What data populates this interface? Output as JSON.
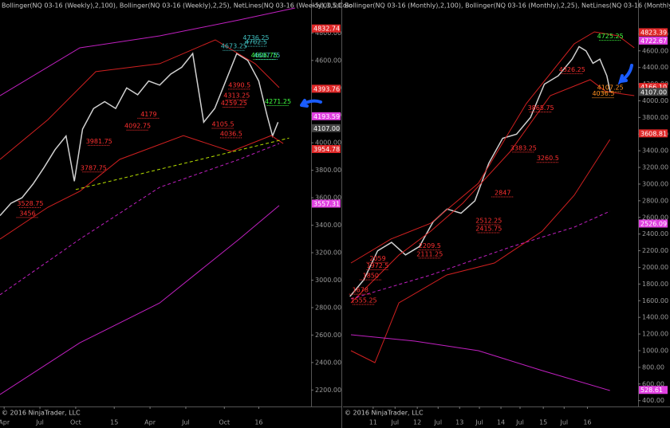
{
  "chart_data": [
    {
      "type": "line",
      "header": "Bollinger(NQ 03-16 (Weekly),2,100), Bollinger(NQ 03-16 (Weekly),2,25), NetLines(NQ 03-16 (Weekly),3,5,Colo",
      "copyright": "© 2016 NinjaTrader, LLC",
      "xlim": [
        0,
        113
      ],
      "xticks": [
        {
          "value": 1.5,
          "label": "Apr"
        },
        {
          "value": 14.5,
          "label": "Jul"
        },
        {
          "value": 27.5,
          "label": "Oct"
        },
        {
          "value": 41.5,
          "label": "15"
        },
        {
          "value": 54.5,
          "label": "Apr"
        },
        {
          "value": 67.5,
          "label": "Jul"
        },
        {
          "value": 81.5,
          "label": "Oct"
        },
        {
          "value": 94,
          "label": "16"
        }
      ],
      "ylim": [
        2080,
        5040
      ],
      "yticks": [
        {
          "value": 2200,
          "label": "2200.00"
        },
        {
          "value": 2400,
          "label": "2400.00"
        },
        {
          "value": 2600,
          "label": "2600.00"
        },
        {
          "value": 2800,
          "label": "2800.00"
        },
        {
          "value": 3000,
          "label": "3000.00"
        },
        {
          "value": 3200,
          "label": "3200.00"
        },
        {
          "value": 3400,
          "label": "3400.00"
        },
        {
          "value": 3600,
          "label": "3600.00"
        },
        {
          "value": 3800,
          "label": "3800.00"
        },
        {
          "value": 4000,
          "label": "4000.00"
        },
        {
          "value": 4200,
          "label": "4200.00"
        },
        {
          "value": 4400,
          "label": "4400.00"
        },
        {
          "value": 4600,
          "label": "4600.00"
        },
        {
          "value": 4800,
          "label": "4800.00"
        },
        {
          "value": 5000,
          "label": "5000.00"
        }
      ],
      "series": [
        {
          "color": "#d0d0d0",
          "x": [
            0,
            4,
            8,
            12,
            16,
            20,
            24,
            27,
            30,
            34,
            38,
            42,
            46,
            50,
            54,
            58,
            62,
            66,
            70,
            74,
            78,
            82,
            86,
            90,
            94,
            97,
            99,
            101
          ],
          "values": [
            3470,
            3560,
            3600,
            3700,
            3820,
            3950,
            4050,
            3720,
            4100,
            4250,
            4300,
            4250,
            4400,
            4350,
            4450,
            4420,
            4500,
            4550,
            4650,
            4150,
            4250,
            4450,
            4650,
            4600,
            4450,
            4200,
            4050,
            4150
          ]
        },
        {
          "color": "#c020c0",
          "x": [
            0,
            29,
            58,
            86.9,
            107.2
          ],
          "values": [
            4343,
            4692,
            4779,
            4895,
            4982
          ]
        },
        {
          "color": "#c020c0",
          "x": [
            0,
            29,
            58,
            86.9,
            101.4
          ],
          "values": [
            2167,
            2544,
            2834,
            3299,
            3543
          ]
        },
        {
          "color": "#c020c0",
          "dash": true,
          "x": [
            0,
            29,
            58,
            86.9,
            101.4
          ],
          "values": [
            2893,
            3299,
            3676,
            3879,
            3995
          ]
        },
        {
          "color": "#d02020",
          "x": [
            0,
            17.4,
            34.8,
            58,
            78.2,
            92.7,
            101.4
          ],
          "values": [
            3879,
            4169,
            4518,
            4576,
            4750,
            4576,
            4402
          ]
        },
        {
          "color": "#d02020",
          "x": [
            0,
            17.4,
            29,
            43.5,
            66.6,
            84,
            98.5,
            102.9
          ],
          "values": [
            3299,
            3531,
            3647,
            3879,
            4053,
            3937,
            4053,
            3995
          ]
        },
        {
          "color": "#b8e000",
          "dash": true,
          "x": [
            27.5,
            105
          ],
          "values": [
            3660,
            4035
          ]
        }
      ],
      "price_tags": [
        {
          "value": 4832.74,
          "color": "#e02828"
        },
        {
          "value": 4393.76,
          "color": "#e02828"
        },
        {
          "value": 4193.59,
          "color": "#e040e0"
        },
        {
          "value": 4107,
          "label": "4107.00",
          "color": "#444"
        },
        {
          "value": 3954.78,
          "color": "#e02828"
        },
        {
          "value": 3557.31,
          "color": "#e040e0"
        }
      ],
      "levels": [
        {
          "x": 101,
          "value": 4271.25,
          "color": "#40ff40"
        },
        {
          "x": 96,
          "value": 4606.75,
          "color": "#40ff40"
        },
        {
          "x": 85,
          "value": 4673.25,
          "color": "#40c0c0"
        },
        {
          "x": 93,
          "value": 4736.25,
          "color": "#40c0c0"
        },
        {
          "x": 93,
          "value": 4702.5,
          "color": "#40c0c0"
        },
        {
          "x": 97,
          "value": 4607.75,
          "color": "#40c0c0"
        },
        {
          "x": 87,
          "value": 4390.5,
          "color": "#ff3030"
        },
        {
          "x": 86,
          "value": 4313.25,
          "color": "#ff3030"
        },
        {
          "x": 85,
          "value": 4259.25,
          "color": "#ff3030"
        },
        {
          "x": 81,
          "value": 4105.5,
          "color": "#ff3030"
        },
        {
          "x": 84,
          "value": 4036.5,
          "color": "#ff3030"
        },
        {
          "x": 54,
          "value": 4179,
          "color": "#ff3030"
        },
        {
          "x": 50,
          "value": 4092.75,
          "color": "#ff3030"
        },
        {
          "x": 36,
          "value": 3981.75,
          "color": "#ff3030"
        },
        {
          "x": 34,
          "value": 3787.75,
          "color": "#ff3030"
        },
        {
          "x": 11,
          "value": 3528.75,
          "color": "#ff3030"
        },
        {
          "x": 10,
          "value": 3456,
          "color": "#ff3030"
        }
      ]
    },
    {
      "type": "line",
      "header": "Bollinger(NQ 03-16 (Monthly),2,100), Bollinger(NQ 03-16 (Monthly),2,25), NetLines(NQ 03-16 (Monthly),3",
      "copyright": "© 2016 NinjaTrader, LLC",
      "xlim": [
        0,
        85
      ],
      "xticks": [
        {
          "value": 8.7,
          "label": "11"
        },
        {
          "value": 15,
          "label": "Jul"
        },
        {
          "value": 21.4,
          "label": "12"
        },
        {
          "value": 27.4,
          "label": "Jul"
        },
        {
          "value": 33.6,
          "label": "13"
        },
        {
          "value": 39.3,
          "label": "Jul"
        },
        {
          "value": 45.5,
          "label": "14"
        },
        {
          "value": 51,
          "label": "Jul"
        },
        {
          "value": 57.7,
          "label": "15"
        },
        {
          "value": 63.7,
          "label": "Jul"
        },
        {
          "value": 70.4,
          "label": "16"
        }
      ],
      "ylim": [
        330,
        5210
      ],
      "yticks": [
        {
          "value": 400,
          "label": "400.00"
        },
        {
          "value": 600,
          "label": "600.00"
        },
        {
          "value": 800,
          "label": "800.00"
        },
        {
          "value": 1000,
          "label": "1000.00"
        },
        {
          "value": 1200,
          "label": "1200.00"
        },
        {
          "value": 1400,
          "label": "1400.00"
        },
        {
          "value": 1600,
          "label": "1600.00"
        },
        {
          "value": 1800,
          "label": "1800.00"
        },
        {
          "value": 2000,
          "label": "2000.00"
        },
        {
          "value": 2200,
          "label": "2200.00"
        },
        {
          "value": 2400,
          "label": "2400.00"
        },
        {
          "value": 2600,
          "label": "2600.00"
        },
        {
          "value": 2800,
          "label": "2800.00"
        },
        {
          "value": 3000,
          "label": "3000.00"
        },
        {
          "value": 3200,
          "label": "3200.00"
        },
        {
          "value": 3400,
          "label": "3400.00"
        },
        {
          "value": 3600,
          "label": "3600.00"
        },
        {
          "value": 3800,
          "label": "3800.00"
        },
        {
          "value": 4000,
          "label": "4000.00"
        },
        {
          "value": 4200,
          "label": "4200.00"
        },
        {
          "value": 4400,
          "label": "4400.00"
        },
        {
          "value": 4600,
          "label": "4600.00"
        },
        {
          "value": 4800,
          "label": "4800.00"
        }
      ],
      "series": [
        {
          "color": "#d0d0d0",
          "x": [
            2,
            6,
            10,
            14,
            18,
            22,
            26,
            30,
            34,
            38,
            42,
            46,
            50,
            54,
            58,
            62,
            64,
            66,
            68,
            70,
            72,
            74,
            76,
            77
          ],
          "values": [
            1650,
            1850,
            2200,
            2300,
            2150,
            2250,
            2550,
            2700,
            2650,
            2800,
            3250,
            3550,
            3600,
            3800,
            4200,
            4300,
            4400,
            4500,
            4650,
            4600,
            4450,
            4500,
            4300,
            4100
          ]
        },
        {
          "color": "#d02020",
          "x": [
            2.3,
            13.8,
            25.3,
            39,
            52.8,
            66.6,
            72.4,
            79.3,
            83.9
          ],
          "values": [
            2052,
            2340,
            2530,
            3010,
            3966,
            4684,
            4827,
            4779,
            4636
          ]
        },
        {
          "color": "#d02020",
          "x": [
            2.3,
            9.2,
            16.1,
            25.3,
            34.5,
            48.2,
            59.7,
            71.2,
            75.8,
            83.9
          ],
          "values": [
            1574,
            1861,
            2148,
            2435,
            2770,
            3392,
            4062,
            4253,
            4110,
            4062
          ]
        },
        {
          "color": "#d02020",
          "x": [
            2.3,
            9.2,
            16.1,
            29.9,
            43.6,
            57.4,
            66.6,
            76.9
          ],
          "values": [
            1000,
            856,
            1574,
            1909,
            2052,
            2435,
            2866,
            3535
          ]
        },
        {
          "color": "#c020c0",
          "dash": true,
          "x": [
            2.3,
            25.3,
            48.2,
            66.6,
            76.9
          ],
          "values": [
            1622,
            1909,
            2244,
            2483,
            2674
          ]
        },
        {
          "color": "#c020c0",
          "x": [
            2.3,
            20.7,
            39,
            57.4,
            76.9
          ],
          "values": [
            1191,
            1115,
            1000,
            761,
            521
          ]
        }
      ],
      "price_tags": [
        {
          "value": 4823.39,
          "color": "#e02828"
        },
        {
          "value": 4722.67,
          "color": "#e040e0"
        },
        {
          "value": 4166.1,
          "label": "4166.10",
          "color": "#e02828"
        },
        {
          "value": 4107,
          "label": "4107.00",
          "color": "#444"
        },
        {
          "value": 3608.81,
          "color": "#e02828"
        },
        {
          "value": 2526.09,
          "color": "#e040e0"
        },
        {
          "value": 528.61,
          "color": "#e040e0"
        }
      ],
      "levels": [
        {
          "x": 77,
          "value": 4725.25,
          "color": "#40ff40"
        },
        {
          "x": 77,
          "value": 4107.25,
          "color": "#ff9020"
        },
        {
          "x": 75,
          "value": 4036.5,
          "color": "#ff9020"
        },
        {
          "x": 66,
          "value": 4326.25,
          "color": "#ff3030"
        },
        {
          "x": 57,
          "value": 3865.75,
          "color": "#ff3030"
        },
        {
          "x": 59,
          "value": 3260.5,
          "color": "#ff3030"
        },
        {
          "x": 52,
          "value": 3383.25,
          "color": "#ff3030"
        },
        {
          "x": 46,
          "value": 2847,
          "color": "#ff3030"
        },
        {
          "x": 42,
          "value": 2512.25,
          "color": "#ff3030"
        },
        {
          "x": 42,
          "value": 2415.75,
          "color": "#ff3030"
        },
        {
          "x": 25,
          "value": 2209.5,
          "color": "#ff3030"
        },
        {
          "x": 25,
          "value": 2111.25,
          "color": "#ff3030"
        },
        {
          "x": 10,
          "value": 2059,
          "color": "#ff3030"
        },
        {
          "x": 10,
          "value": 1972.5,
          "color": "#ff3030"
        },
        {
          "x": 8,
          "value": 1850,
          "color": "#ff3030"
        },
        {
          "x": 5,
          "value": 1678,
          "color": "#ff3030"
        },
        {
          "x": 6,
          "value": 1555.25,
          "color": "#ff3030"
        }
      ]
    }
  ]
}
